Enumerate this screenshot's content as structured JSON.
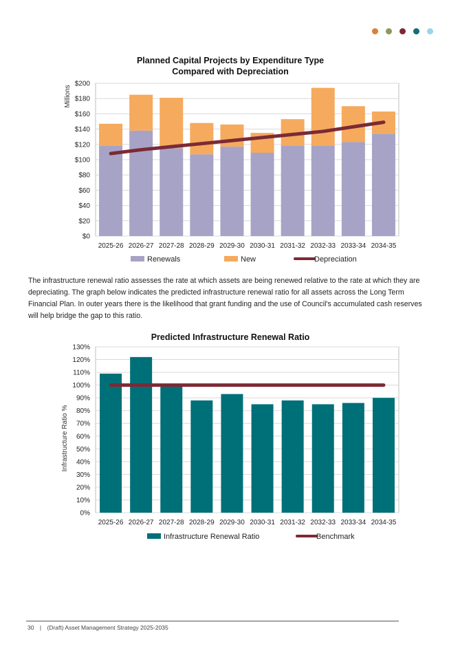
{
  "decor": {
    "dots": [
      "#d9813a",
      "#8b9a5b",
      "#7b2a35",
      "#0f6f74",
      "#9ad4ea"
    ]
  },
  "colors": {
    "renewals": "#a7a3c6",
    "new": "#f5aa5d",
    "depreciation": "#7b2a35",
    "ratio": "#007078",
    "benchmark": "#7b2a35",
    "grid": "#d9d9d9"
  },
  "paragraph": "The infrastructure renewal ratio assesses the rate at which assets are being renewed relative to the rate at which they are depreciating. The graph below indicates the predicted infrastructure renewal ratio for all assets across the Long Term Financial Plan. In outer years there is the likelihood that grant funding and the use of Council's accumulated cash reserves will help bridge the gap to this ratio.",
  "footer": {
    "page_number": "30",
    "separator": "|",
    "doc_title": "(Draft) Asset Management Strategy 2025-2035"
  },
  "chart_data": [
    {
      "type": "bar",
      "stacked": true,
      "title": "Planned Capital Projects by Expenditure Type",
      "subtitle": "Compared with Depreciation",
      "ylabel": "Millions",
      "xlabel": "",
      "ylim": [
        0,
        200
      ],
      "yticks": [
        "$0",
        "$20",
        "$40",
        "$60",
        "$80",
        "$100",
        "$120",
        "$140",
        "$160",
        "$180",
        "$200"
      ],
      "categories": [
        "2025-26",
        "2026-27",
        "2027-28",
        "2028-29",
        "2029-30",
        "2030-31",
        "2031-32",
        "2032-33",
        "2033-34",
        "2034-35"
      ],
      "series": [
        {
          "name": "Renewals",
          "kind": "bar",
          "values": [
            118,
            138,
            115,
            107,
            117,
            109,
            118,
            118,
            123,
            134
          ]
        },
        {
          "name": "New",
          "kind": "bar",
          "values": [
            29,
            47,
            66,
            41,
            29,
            26,
            35,
            76,
            47,
            29
          ]
        },
        {
          "name": "Depreciation",
          "kind": "line",
          "values": [
            108,
            113,
            117,
            121,
            125,
            129,
            133,
            137,
            143,
            149
          ]
        }
      ],
      "grid": true,
      "legend_position": "bottom"
    },
    {
      "type": "bar",
      "title": "Predicted Infrastructure Renewal Ratio",
      "ylabel": "Infrastructure Ratio %",
      "xlabel": "",
      "ylim": [
        0,
        130
      ],
      "yticks": [
        "0%",
        "10%",
        "20%",
        "30%",
        "40%",
        "50%",
        "60%",
        "70%",
        "80%",
        "90%",
        "100%",
        "110%",
        "120%",
        "130%"
      ],
      "categories": [
        "2025-26",
        "2026-27",
        "2027-28",
        "2028-29",
        "2029-30",
        "2030-31",
        "2031-32",
        "2032-33",
        "2033-34",
        "2034-35"
      ],
      "series": [
        {
          "name": "Infrastructure Renewal Ratio",
          "kind": "bar",
          "values": [
            109,
            122,
            101,
            88,
            93,
            85,
            88,
            85,
            86,
            90
          ]
        },
        {
          "name": "Benchmark",
          "kind": "line",
          "values": [
            100,
            100,
            100,
            100,
            100,
            100,
            100,
            100,
            100,
            100
          ]
        }
      ],
      "grid": true,
      "legend_position": "bottom"
    }
  ]
}
